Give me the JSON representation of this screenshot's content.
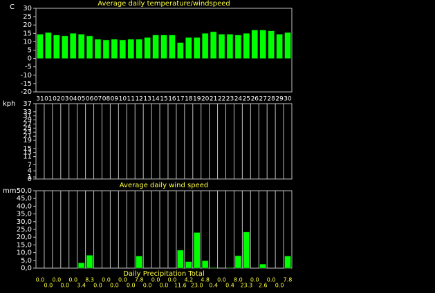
{
  "chart_data": [
    {
      "type": "bar",
      "title": "Average daily temperature/windspeed",
      "ylabel": "C",
      "categories": [
        "31",
        "01",
        "02",
        "03",
        "04",
        "05",
        "06",
        "07",
        "08",
        "09",
        "10",
        "11",
        "12",
        "13",
        "14",
        "15",
        "16",
        "17",
        "18",
        "19",
        "20",
        "21",
        "22",
        "23",
        "24",
        "25",
        "26",
        "27",
        "28",
        "29",
        "30"
      ],
      "values": [
        14.5,
        15.5,
        14,
        13.5,
        15,
        14.5,
        13.5,
        11.5,
        11,
        11.5,
        11,
        11.5,
        11.5,
        12.5,
        14,
        14,
        14,
        9.5,
        12.5,
        12.5,
        15,
        16,
        14.5,
        14.5,
        14,
        15,
        17,
        17,
        16.5,
        14.5,
        15.5
      ],
      "color": "#00ff00",
      "ylim": [
        -20,
        30
      ],
      "yticks": [
        -20,
        -15,
        -10,
        -5,
        0,
        5,
        10,
        15,
        20,
        25,
        30
      ]
    },
    {
      "type": "bar",
      "title": "Average daily wind speed",
      "ylabel": "kph",
      "ylim": [
        0,
        37
      ],
      "yticks": [
        0,
        1,
        4,
        7,
        11,
        13,
        15,
        19,
        21,
        23,
        25,
        27,
        29,
        31,
        33,
        37
      ]
    },
    {
      "type": "bar",
      "title": "Daily Precipitation Total",
      "ylabel": "mm",
      "values": [
        0,
        0,
        0,
        0,
        0,
        3.4,
        8.3,
        0,
        0,
        0,
        0,
        0,
        7.8,
        0,
        0,
        0,
        0,
        11.6,
        4.2,
        23.0,
        4.8,
        0.4,
        0,
        0.4,
        8.0,
        23.3,
        0,
        2.6,
        0,
        0,
        7.8
      ],
      "value_labels": [
        "0.0",
        "0.0",
        "0.0",
        "0.0",
        "0.0",
        "3.4",
        "8.3",
        "0.0",
        "0.0",
        "0.0",
        "0.0",
        "0.0",
        "7.8",
        "0.0",
        "0.0",
        "0.0",
        "0.0",
        "11.6",
        "4.2",
        "23.0",
        "4.8",
        "0.4",
        "0.0",
        "0.4",
        "8.0",
        "23.3",
        "0.0",
        "2.6",
        "0.0",
        "0.0",
        "7.8"
      ],
      "color": "#00ff00",
      "ylim": [
        0,
        50
      ],
      "yticks": [
        {
          "value": 0,
          "label": "0,0"
        },
        {
          "value": 5,
          "label": "5,0"
        },
        {
          "value": 10,
          "label": "10,0"
        },
        {
          "value": 15,
          "label": "15,0"
        },
        {
          "value": 20,
          "label": "20,0"
        },
        {
          "value": 25,
          "label": "25,0"
        },
        {
          "value": 30,
          "label": "30,0"
        },
        {
          "value": 35,
          "label": "35,0"
        },
        {
          "value": 40,
          "label": "40,0"
        },
        {
          "value": 45,
          "label": "45,0"
        },
        {
          "value": 50,
          "label": "50,0"
        }
      ]
    }
  ]
}
